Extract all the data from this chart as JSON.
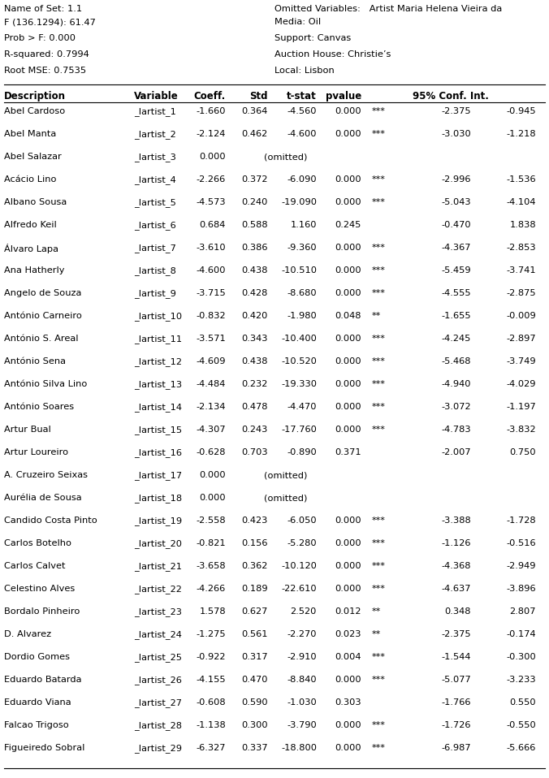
{
  "stats_left": [
    "F (136.1294): 61.47",
    "Prob > F: 0.000",
    "R-squared: 0.7994",
    "Root MSE: 0.7535"
  ],
  "stats_right": [
    "Media: Oil",
    "Support: Canvas",
    "Auction House: Christie’s",
    "Local: Lisbon"
  ],
  "rows": [
    [
      "Abel Cardoso",
      "_Iartist_1",
      "-1.660",
      "0.364",
      "-4.560",
      "0.000",
      "***",
      "-2.375",
      "-0.945"
    ],
    [
      "Abel Manta",
      "_Iartist_2",
      "-2.124",
      "0.462",
      "-4.600",
      "0.000",
      "***",
      "-3.030",
      "-1.218"
    ],
    [
      "Abel Salazar",
      "_Iartist_3",
      "0.000",
      "(omitted)",
      "",
      "",
      "",
      "",
      ""
    ],
    [
      "Acácio Lino",
      "_Iartist_4",
      "-2.266",
      "0.372",
      "-6.090",
      "0.000",
      "***",
      "-2.996",
      "-1.536"
    ],
    [
      "Albano Sousa",
      "_Iartist_5",
      "-4.573",
      "0.240",
      "-19.090",
      "0.000",
      "***",
      "-5.043",
      "-4.104"
    ],
    [
      "Alfredo Keil",
      "_Iartist_6",
      "0.684",
      "0.588",
      "1.160",
      "0.245",
      "",
      "-0.470",
      "1.838"
    ],
    [
      "Álvaro Lapa",
      "_Iartist_7",
      "-3.610",
      "0.386",
      "-9.360",
      "0.000",
      "***",
      "-4.367",
      "-2.853"
    ],
    [
      "Ana Hatherly",
      "_Iartist_8",
      "-4.600",
      "0.438",
      "-10.510",
      "0.000",
      "***",
      "-5.459",
      "-3.741"
    ],
    [
      "Angelo de Souza",
      "_Iartist_9",
      "-3.715",
      "0.428",
      "-8.680",
      "0.000",
      "***",
      "-4.555",
      "-2.875"
    ],
    [
      "António Carneiro",
      "_Iartist_10",
      "-0.832",
      "0.420",
      "-1.980",
      "0.048",
      "**",
      "-1.655",
      "-0.009"
    ],
    [
      "António S. Areal",
      "_Iartist_11",
      "-3.571",
      "0.343",
      "-10.400",
      "0.000",
      "***",
      "-4.245",
      "-2.897"
    ],
    [
      "António Sena",
      "_Iartist_12",
      "-4.609",
      "0.438",
      "-10.520",
      "0.000",
      "***",
      "-5.468",
      "-3.749"
    ],
    [
      "António Silva Lino",
      "_Iartist_13",
      "-4.484",
      "0.232",
      "-19.330",
      "0.000",
      "***",
      "-4.940",
      "-4.029"
    ],
    [
      "António Soares",
      "_Iartist_14",
      "-2.134",
      "0.478",
      "-4.470",
      "0.000",
      "***",
      "-3.072",
      "-1.197"
    ],
    [
      "Artur Bual",
      "_Iartist_15",
      "-4.307",
      "0.243",
      "-17.760",
      "0.000",
      "***",
      "-4.783",
      "-3.832"
    ],
    [
      "Artur Loureiro",
      "_Iartist_16",
      "-0.628",
      "0.703",
      "-0.890",
      "0.371",
      "",
      "-2.007",
      "0.750"
    ],
    [
      "A. Cruzeiro Seixas",
      "_Iartist_17",
      "0.000",
      "(omitted)",
      "",
      "",
      "",
      "",
      ""
    ],
    [
      "Aurélia de Sousa",
      "_Iartist_18",
      "0.000",
      "(omitted)",
      "",
      "",
      "",
      "",
      ""
    ],
    [
      "Candido Costa Pinto",
      "_Iartist_19",
      "-2.558",
      "0.423",
      "-6.050",
      "0.000",
      "***",
      "-3.388",
      "-1.728"
    ],
    [
      "Carlos Botelho",
      "_Iartist_20",
      "-0.821",
      "0.156",
      "-5.280",
      "0.000",
      "***",
      "-1.126",
      "-0.516"
    ],
    [
      "Carlos Calvet",
      "_Iartist_21",
      "-3.658",
      "0.362",
      "-10.120",
      "0.000",
      "***",
      "-4.368",
      "-2.949"
    ],
    [
      "Celestino Alves",
      "_Iartist_22",
      "-4.266",
      "0.189",
      "-22.610",
      "0.000",
      "***",
      "-4.637",
      "-3.896"
    ],
    [
      "Bordalo Pinheiro",
      "_Iartist_23",
      "1.578",
      "0.627",
      "2.520",
      "0.012",
      "**",
      "0.348",
      "2.807"
    ],
    [
      "D. Alvarez",
      "_Iartist_24",
      "-1.275",
      "0.561",
      "-2.270",
      "0.023",
      "**",
      "-2.375",
      "-0.174"
    ],
    [
      "Dordio Gomes",
      "_Iartist_25",
      "-0.922",
      "0.317",
      "-2.910",
      "0.004",
      "***",
      "-1.544",
      "-0.300"
    ],
    [
      "Eduardo Batarda",
      "_Iartist_26",
      "-4.155",
      "0.470",
      "-8.840",
      "0.000",
      "***",
      "-5.077",
      "-3.233"
    ],
    [
      "Eduardo Viana",
      "_Iartist_27",
      "-0.608",
      "0.590",
      "-1.030",
      "0.303",
      "",
      "-1.766",
      "0.550"
    ],
    [
      "Falcao Trigoso",
      "_Iartist_28",
      "-1.138",
      "0.300",
      "-3.790",
      "0.000",
      "***",
      "-1.726",
      "-0.550"
    ],
    [
      "Figueiredo Sobral",
      "_Iartist_29",
      "-6.327",
      "0.337",
      "-18.800",
      "0.000",
      "***",
      "-6.987",
      "-5.666"
    ]
  ],
  "bg_color": "#ffffff",
  "text_color": "#000000",
  "font_size": 8.2,
  "header_font_size": 8.5
}
